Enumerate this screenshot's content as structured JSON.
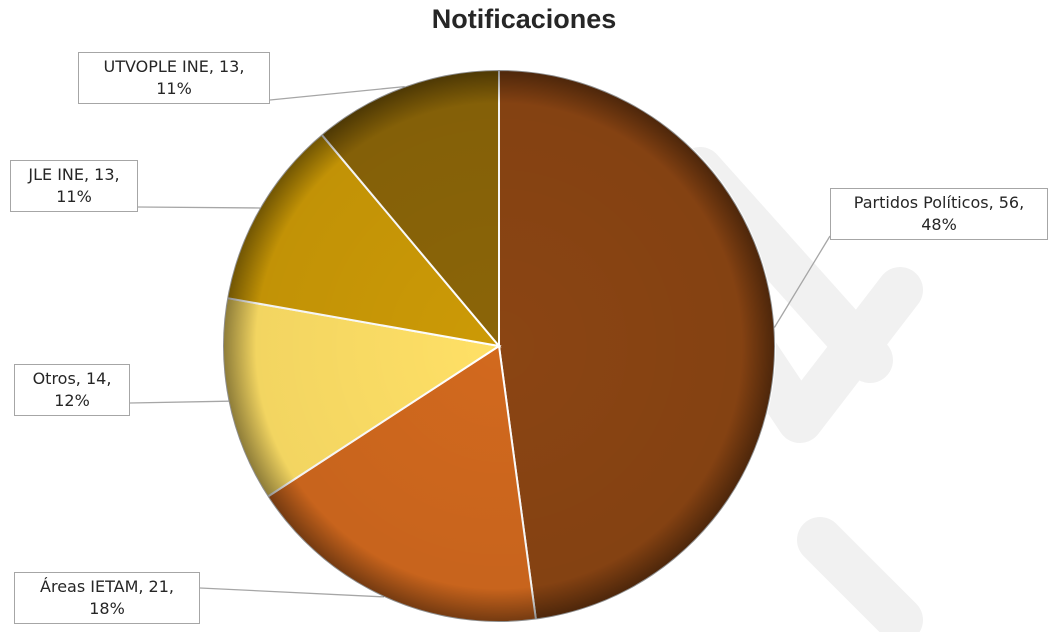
{
  "chart_data": {
    "type": "pie",
    "title": "Notificaciones",
    "slices": [
      {
        "name": "Partidos Políticos",
        "value": 56,
        "percent": "48%",
        "color": "#8B4513"
      },
      {
        "name": "Áreas IETAM",
        "value": 21,
        "percent": "18%",
        "color": "#D2691E"
      },
      {
        "name": "Otros",
        "value": 14,
        "percent": "12%",
        "color": "#FFE066"
      },
      {
        "name": "JLE INE",
        "value": 13,
        "percent": "11%",
        "color": "#CC9A06"
      },
      {
        "name": "UTVOPLE INE",
        "value": 13,
        "percent": "11%",
        "color": "#8B6508"
      }
    ],
    "labels": [
      {
        "line1": "Partidos Políticos, 56,",
        "line2": "48%"
      },
      {
        "line1": "Áreas IETAM, 21,",
        "line2": "18%"
      },
      {
        "line1": "Otros, 14,",
        "line2": "12%"
      },
      {
        "line1": "JLE INE, 13,",
        "line2": "11%"
      },
      {
        "line1": "UTVOPLE INE, 13,",
        "line2": "11%"
      }
    ],
    "legend": "none",
    "start_angle_deg": 0,
    "direction": "clockwise"
  }
}
